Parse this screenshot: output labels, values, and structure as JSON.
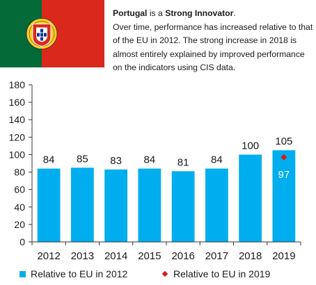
{
  "intro": {
    "country": "Portugal",
    "mid1": " is a ",
    "category": "Strong Innovator",
    "end1": ".",
    "description": "Over time, performance has increased relative to that of the EU in 2012. The strong increase in 2018 is almost entirely explained by improved performance on the indicators using CIS data."
  },
  "flag": {
    "green": "#046a38",
    "red": "#da291c",
    "gold": "#ffcc29"
  },
  "chart_data": {
    "type": "bar",
    "categories": [
      "2012",
      "2013",
      "2014",
      "2015",
      "2016",
      "2017",
      "2018",
      "2019"
    ],
    "series": [
      {
        "name": "Relative to EU in 2012",
        "values": [
          84,
          85,
          83,
          84,
          81,
          84,
          100,
          105
        ],
        "color": "#00aeef",
        "labels": [
          "84",
          "85",
          "83",
          "84",
          "81",
          "84",
          "100",
          "105"
        ]
      },
      {
        "name": "Relative to EU in 2019",
        "marker": "diamond",
        "color": "#d7191c",
        "points": [
          {
            "x": "2019",
            "y": 97,
            "label": "97"
          }
        ]
      }
    ],
    "yticks": [
      "0",
      "20",
      "40",
      "60",
      "80",
      "100",
      "120",
      "140",
      "160",
      "180"
    ],
    "ylim": [
      0,
      180
    ],
    "grid": false,
    "legend": "bottom"
  }
}
